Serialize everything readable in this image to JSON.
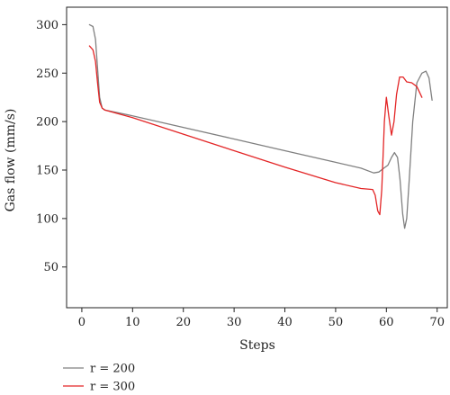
{
  "chart_data": {
    "type": "line",
    "title": "",
    "xlabel": "Steps",
    "ylabel": "Gas flow (mm/s)",
    "xlim": [
      -3,
      72
    ],
    "ylim": [
      8,
      318
    ],
    "x_ticks": [
      0,
      10,
      20,
      30,
      40,
      50,
      60,
      70
    ],
    "y_ticks": [
      50,
      100,
      150,
      200,
      250,
      300
    ],
    "grid": false,
    "legend": "bottom-left",
    "series": [
      {
        "name": "r = 200",
        "color": "#808080",
        "x": [
          1.5,
          2.2,
          2.7,
          3.1,
          3.5,
          4.0,
          4.5,
          10,
          20,
          30,
          40,
          50,
          55,
          57.5,
          58.5,
          59.5,
          60.3,
          61.0,
          61.6,
          62.2,
          62.7,
          63.2,
          63.6,
          64.0,
          64.5,
          65.2,
          66.0,
          67.0,
          67.8,
          68.4,
          69.0
        ],
        "y": [
          300,
          298,
          285,
          255,
          225,
          214,
          212,
          206,
          194,
          182,
          170,
          158,
          152,
          147,
          148,
          152,
          155,
          163,
          168,
          163,
          140,
          105,
          90,
          100,
          140,
          200,
          240,
          250,
          252,
          245,
          222
        ]
      },
      {
        "name": "r = 300",
        "color": "#e32526",
        "x": [
          1.5,
          2.2,
          2.7,
          3.1,
          3.5,
          4.0,
          4.5,
          10,
          20,
          30,
          40,
          50,
          55,
          57.3,
          57.8,
          58.3,
          58.7,
          59.1,
          59.6,
          60.0,
          60.5,
          61.0,
          61.5,
          62.0,
          62.6,
          63.3,
          64.0,
          65.0,
          66.0,
          67.0
        ],
        "y": [
          278,
          274,
          262,
          240,
          220,
          214,
          212,
          204,
          187,
          170,
          153,
          137,
          131,
          130,
          124,
          108,
          104,
          130,
          200,
          225,
          205,
          186,
          200,
          228,
          246,
          246,
          241,
          240,
          236,
          225
        ]
      }
    ]
  }
}
